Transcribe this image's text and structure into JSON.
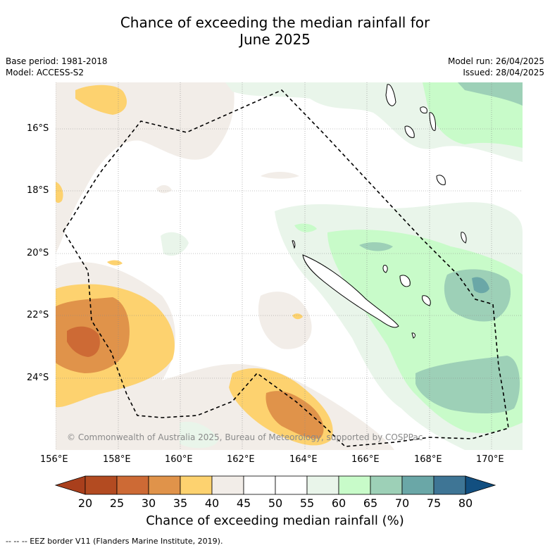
{
  "header": {
    "title_line1": "Chance of exceeding the median rainfall for",
    "title_line2": "June 2025",
    "base_period": "Base period: 1981-2018",
    "model": "Model: ACCESS-S2",
    "model_run": "Model run: 26/04/2025",
    "issued": "Issued: 28/04/2025"
  },
  "map": {
    "lon_ticks": [
      "156°E",
      "158°E",
      "160°E",
      "162°E",
      "164°E",
      "166°E",
      "168°E",
      "170°E"
    ],
    "lat_ticks": [
      "16°S",
      "18°S",
      "20°S",
      "22°S",
      "24°S"
    ],
    "copyright": "© Commonwealth of Australia 2025, Bureau of Meteorology, supported by COSPPac",
    "line_legend": "-- -- -- EEZ border V11 (Flanders Marine Institute, 2019)."
  },
  "colorbar": {
    "label": "Chance of exceeding median rainfall (%)",
    "ticks": [
      "20",
      "25",
      "30",
      "35",
      "40",
      "45",
      "50",
      "55",
      "60",
      "65",
      "70",
      "75",
      "80"
    ],
    "colors": [
      "#a93f1c",
      "#b34b21",
      "#cd6a35",
      "#e0934a",
      "#fdd26f",
      "#f2ede8",
      "#ffffff",
      "#ffffff",
      "#e9f5ea",
      "#c8fbc9",
      "#9dd0b7",
      "#6aa7a7",
      "#3e7595",
      "#124f80"
    ]
  }
}
